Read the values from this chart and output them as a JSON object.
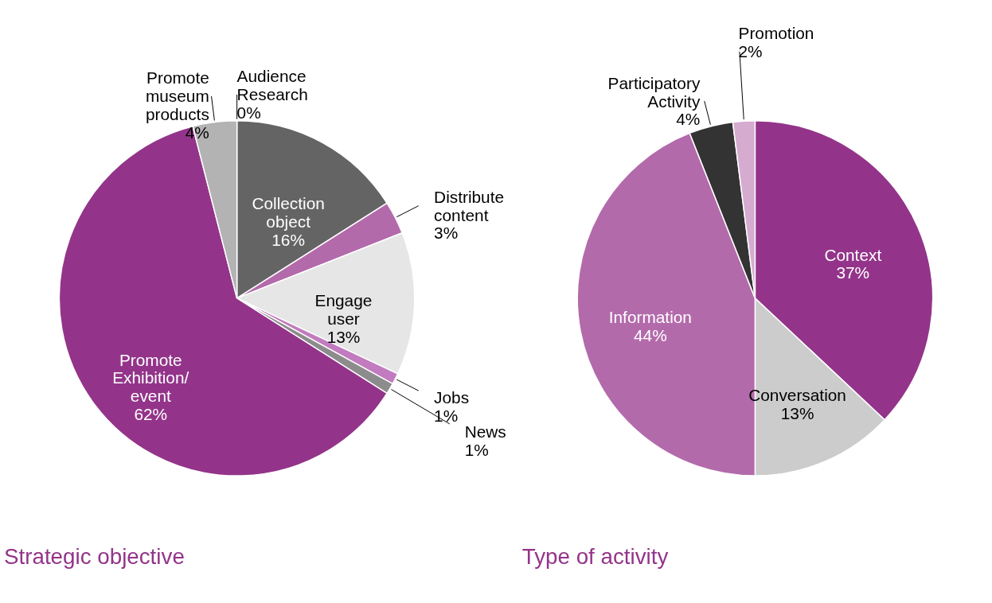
{
  "chart_data": [
    {
      "type": "pie",
      "title": "Strategic objective",
      "categories": [
        "Audience Research",
        "Collection object",
        "Distribute content",
        "Engage user",
        "Jobs",
        "News",
        "Promote Exhibition/ event",
        "Promote museum products"
      ],
      "values": [
        0,
        16,
        3,
        13,
        1,
        1,
        62,
        4
      ],
      "value_labels": [
        "0%",
        "16%",
        "3%",
        "13%",
        "1%",
        "1%",
        "62%",
        "4%"
      ],
      "colors": [
        "#f5e6f0",
        "#646464",
        "#b36aab",
        "#e6e6e6",
        "#c27bbf",
        "#8c8c8c",
        "#93348a",
        "#b3b3b3"
      ]
    },
    {
      "type": "pie",
      "title": "Type of activity",
      "categories": [
        "Context",
        "Conversation",
        "Information",
        "Participatory Activity",
        "Promotion"
      ],
      "values": [
        37,
        13,
        44,
        4,
        2
      ],
      "value_labels": [
        "37%",
        "13%",
        "44%",
        "4%",
        "2%"
      ],
      "colors": [
        "#93348a",
        "#cccccc",
        "#b36aab",
        "#333333",
        "#d6abd0"
      ]
    }
  ]
}
